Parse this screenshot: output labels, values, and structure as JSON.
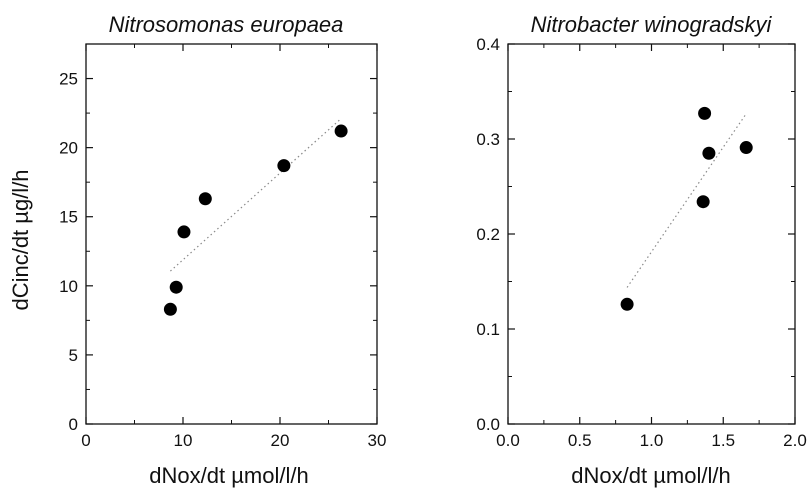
{
  "chart_data": [
    {
      "type": "scatter",
      "title": "Nitrosomonas europaea",
      "xlabel": "dNox/dt µmol/l/h",
      "ylabel": "dCinc/dt µg/l/h",
      "xlim": [
        0,
        30
      ],
      "ylim": [
        0,
        27.5
      ],
      "xticks": [
        "0",
        "10",
        "20",
        "30"
      ],
      "yticks": [
        "0",
        "5",
        "10",
        "15",
        "20",
        "25"
      ],
      "grid": false,
      "fit_line": "dotted",
      "series": [
        {
          "x": [
            8.7,
            9.3,
            10.1,
            12.3,
            20.4,
            26.3
          ],
          "y": [
            8.3,
            9.9,
            13.9,
            16.3,
            18.7,
            21.2
          ]
        }
      ]
    },
    {
      "type": "scatter",
      "title": "Nitrobacter winogradskyi",
      "xlabel": "dNox/dt µmol/l/h",
      "ylabel": "",
      "xlim": [
        0,
        2
      ],
      "ylim": [
        0,
        0.4
      ],
      "xticks": [
        "0.0",
        "0.5",
        "1.0",
        "1.5",
        "2.0"
      ],
      "yticks": [
        "0.0",
        "0.1",
        "0.2",
        "0.3",
        "0.4"
      ],
      "grid": false,
      "fit_line": "dotted",
      "series": [
        {
          "x": [
            0.83,
            1.36,
            1.37,
            1.4,
            1.66
          ],
          "y": [
            0.126,
            0.234,
            0.327,
            0.285,
            0.291
          ]
        }
      ]
    }
  ]
}
